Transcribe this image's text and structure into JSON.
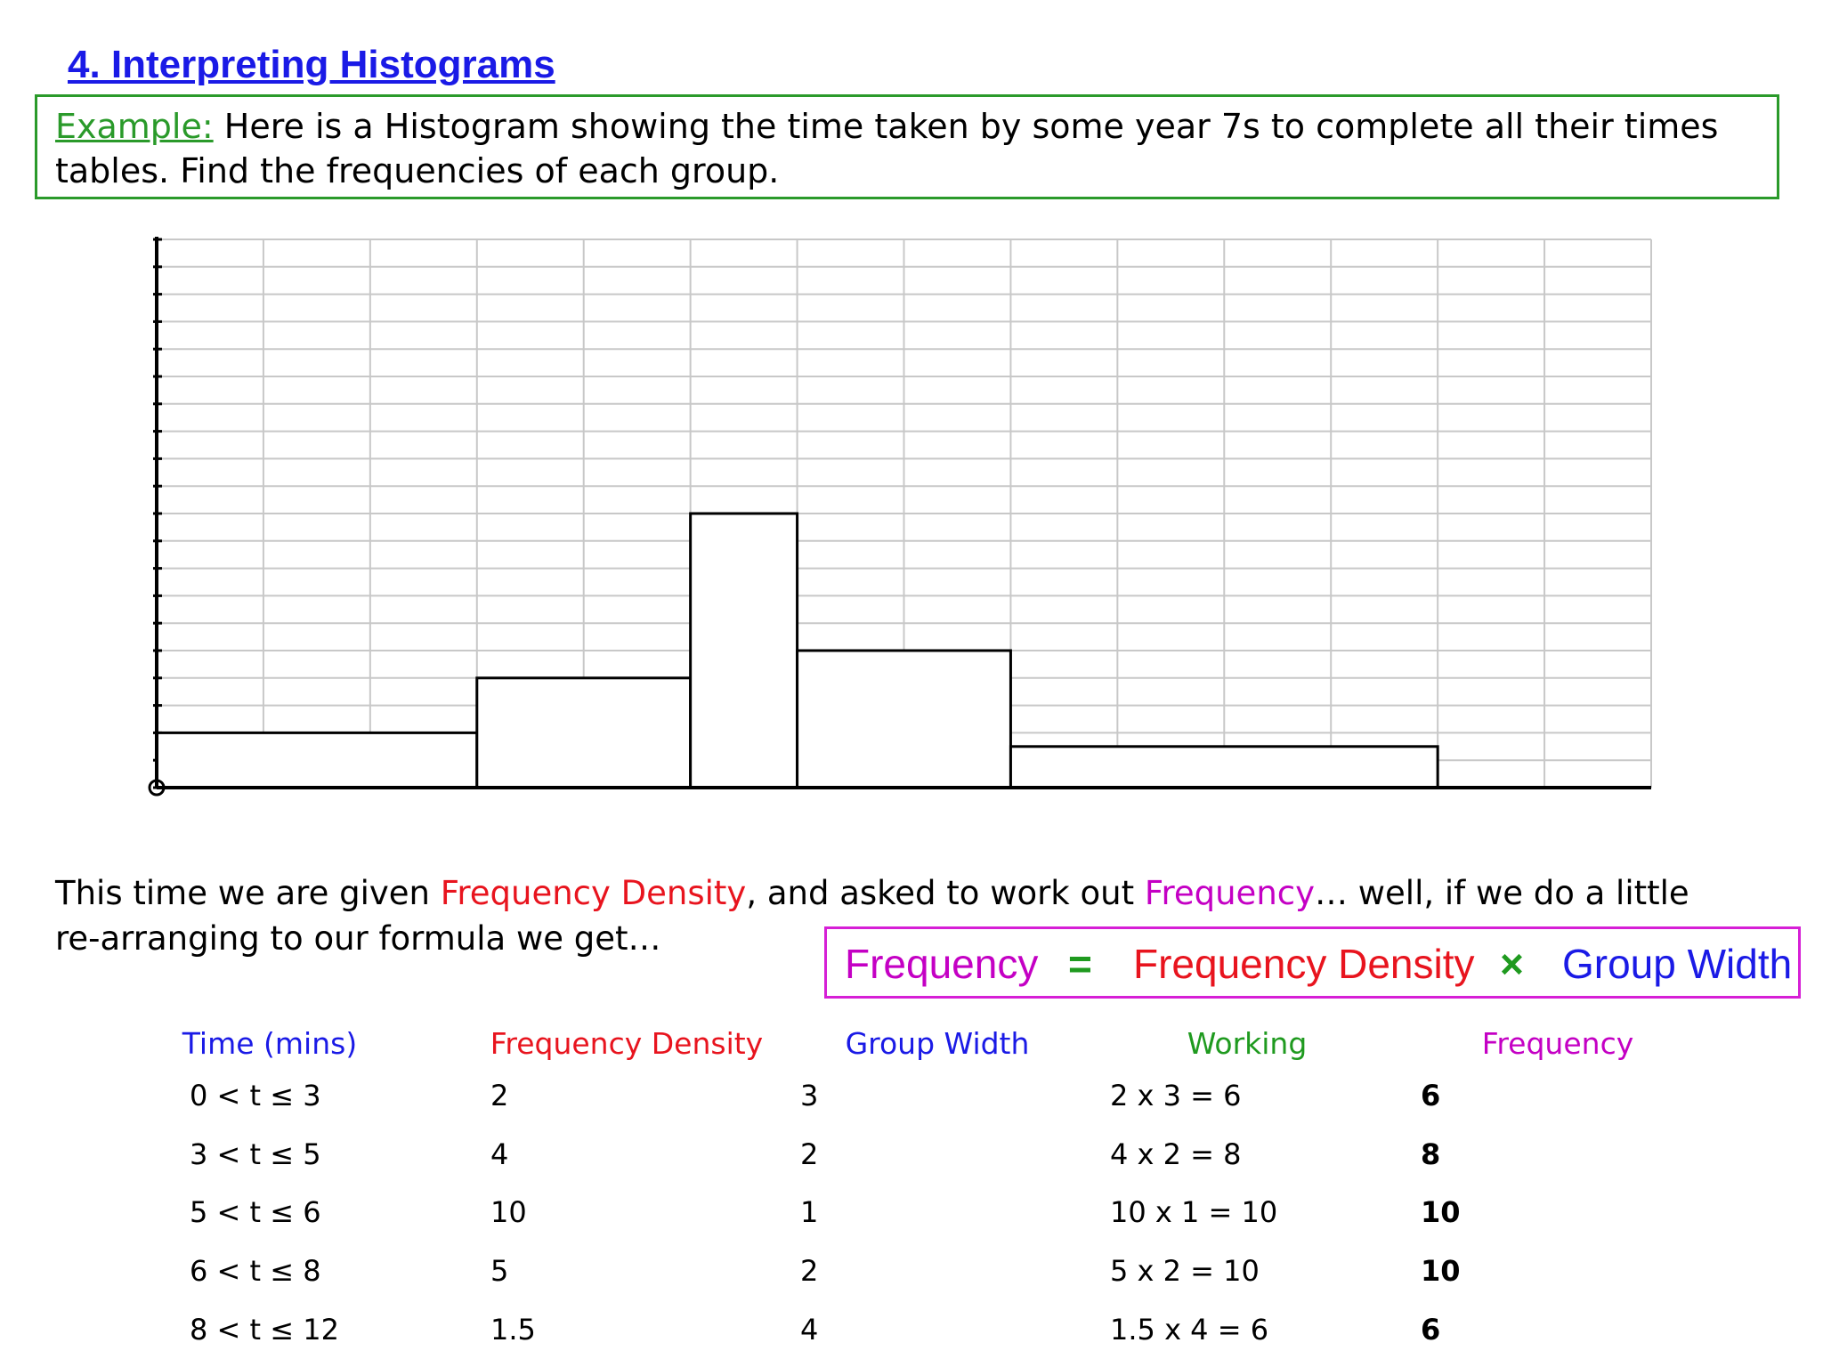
{
  "title": "4. Interpreting Histograms",
  "example": {
    "label": "Example:",
    "text": "Here is a Histogram showing the time taken by some year 7s to complete all their times tables. Find the frequencies of each group."
  },
  "chart_data": {
    "type": "histogram",
    "bins": [
      0,
      3,
      5,
      6,
      8,
      12
    ],
    "values": [
      2,
      4,
      10,
      5,
      1.5
    ],
    "xlim": [
      0,
      14
    ],
    "ylim": [
      0,
      20
    ],
    "grid": true,
    "color": "#ffffff"
  },
  "intro": [
    "This time we are given ",
    "Frequency Density",
    ", and asked to work out ",
    "Frequency",
    "… well, if we do a little re-arranging to our formula we get…"
  ],
  "formula": [
    "Frequency",
    "=",
    "Frequency Density",
    "×",
    "Group Width"
  ],
  "table": {
    "header": [
      "Time (mins)",
      "Frequency Density",
      "Group Width",
      "Working",
      "Frequency"
    ],
    "rows": [
      [
        "0 < t ≤ 3",
        "2",
        "3",
        "2 x 3 = 6",
        "6"
      ],
      [
        "3 < t ≤ 5",
        "4",
        "2",
        "4 x 2 = 8",
        "8"
      ],
      [
        "5 < t ≤ 6",
        "10",
        "1",
        "10 x 1 = 10",
        "10"
      ],
      [
        "6 < t ≤ 8",
        "5",
        "2",
        "5 x 2 = 10",
        "10"
      ],
      [
        "8 < t ≤ 12",
        "1.5",
        "4",
        "1.5 x 4 = 6",
        "6"
      ]
    ]
  }
}
